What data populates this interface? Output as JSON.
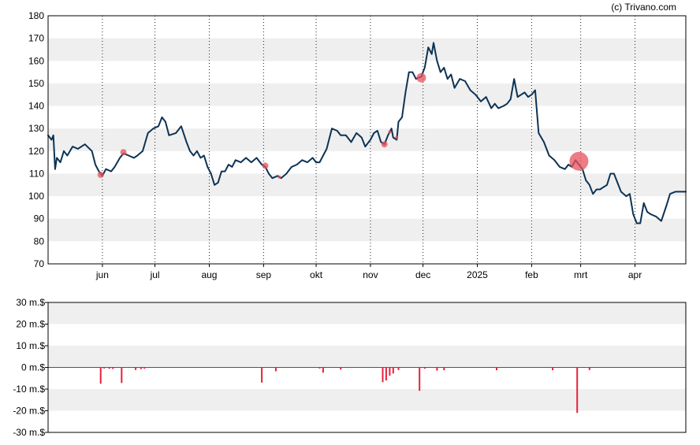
{
  "watermark": "(c) Trivano.com",
  "chart_data": [
    {
      "type": "line",
      "title": "",
      "xlabel": "",
      "ylabel": "",
      "ylim": [
        70,
        180
      ],
      "yticks": [
        "70",
        "80",
        "90",
        "100",
        "110",
        "120",
        "130",
        "140",
        "150",
        "160",
        "170",
        "180"
      ],
      "xlim": [
        "2024-05-01",
        "2025-04-30"
      ],
      "xticks": [
        {
          "date": "2024-06-01",
          "label": "jun"
        },
        {
          "date": "2024-07-01",
          "label": "jul"
        },
        {
          "date": "2024-08-01",
          "label": "aug"
        },
        {
          "date": "2024-09-01",
          "label": "sep"
        },
        {
          "date": "2024-10-01",
          "label": "okt"
        },
        {
          "date": "2024-11-01",
          "label": "nov"
        },
        {
          "date": "2024-12-01",
          "label": "dec"
        },
        {
          "date": "2025-01-01",
          "label": "2025"
        },
        {
          "date": "2025-02-01",
          "label": "feb"
        },
        {
          "date": "2025-03-01",
          "label": "mrt"
        },
        {
          "date": "2025-04-01",
          "label": "apr"
        }
      ],
      "grid": "alternating horizontal bands, dotted vertical lines at month ticks",
      "colors": {
        "line": "#0d3354",
        "marker": "#e8505b",
        "band": "#efefef"
      },
      "series": [
        {
          "values": [
            [
              "2024-05-01",
              127
            ],
            [
              "2024-05-03",
              125
            ],
            [
              "2024-05-04",
              127
            ],
            [
              "2024-05-05",
              112
            ],
            [
              "2024-05-06",
              117
            ],
            [
              "2024-05-08",
              115
            ],
            [
              "2024-05-10",
              120
            ],
            [
              "2024-05-12",
              118
            ],
            [
              "2024-05-15",
              122
            ],
            [
              "2024-05-18",
              121
            ],
            [
              "2024-05-22",
              123
            ],
            [
              "2024-05-26",
              120
            ],
            [
              "2024-05-28",
              114
            ],
            [
              "2024-05-30",
              111
            ],
            [
              "2024-06-01",
              109
            ],
            [
              "2024-06-03",
              112
            ],
            [
              "2024-06-06",
              111
            ],
            [
              "2024-06-08",
              113
            ],
            [
              "2024-06-11",
              117
            ],
            [
              "2024-06-13",
              119
            ],
            [
              "2024-06-16",
              118
            ],
            [
              "2024-06-19",
              117
            ],
            [
              "2024-06-21",
              118
            ],
            [
              "2024-06-24",
              120
            ],
            [
              "2024-06-27",
              128
            ],
            [
              "2024-06-30",
              130
            ],
            [
              "2024-07-03",
              131
            ],
            [
              "2024-07-05",
              135
            ],
            [
              "2024-07-07",
              133
            ],
            [
              "2024-07-09",
              127
            ],
            [
              "2024-07-13",
              128
            ],
            [
              "2024-07-16",
              131
            ],
            [
              "2024-07-19",
              124
            ],
            [
              "2024-07-21",
              120
            ],
            [
              "2024-07-23",
              118
            ],
            [
              "2024-07-25",
              120
            ],
            [
              "2024-07-27",
              117
            ],
            [
              "2024-07-29",
              118
            ],
            [
              "2024-07-31",
              113
            ],
            [
              "2024-08-02",
              110
            ],
            [
              "2024-08-04",
              105
            ],
            [
              "2024-08-06",
              106
            ],
            [
              "2024-08-08",
              111
            ],
            [
              "2024-08-10",
              111
            ],
            [
              "2024-08-12",
              114
            ],
            [
              "2024-08-14",
              113
            ],
            [
              "2024-08-16",
              116
            ],
            [
              "2024-08-19",
              115
            ],
            [
              "2024-08-22",
              117
            ],
            [
              "2024-08-25",
              115
            ],
            [
              "2024-08-28",
              117
            ],
            [
              "2024-08-31",
              114
            ],
            [
              "2024-09-02",
              113
            ],
            [
              "2024-09-04",
              110
            ],
            [
              "2024-09-06",
              108
            ],
            [
              "2024-09-09",
              109
            ],
            [
              "2024-09-11",
              108
            ],
            [
              "2024-09-14",
              110
            ],
            [
              "2024-09-17",
              113
            ],
            [
              "2024-09-20",
              114
            ],
            [
              "2024-09-23",
              116
            ],
            [
              "2024-09-26",
              115
            ],
            [
              "2024-09-29",
              117
            ],
            [
              "2024-10-01",
              115
            ],
            [
              "2024-10-03",
              115
            ],
            [
              "2024-10-05",
              118
            ],
            [
              "2024-10-07",
              121
            ],
            [
              "2024-10-10",
              130
            ],
            [
              "2024-10-13",
              129
            ],
            [
              "2024-10-15",
              127
            ],
            [
              "2024-10-18",
              127
            ],
            [
              "2024-10-21",
              124
            ],
            [
              "2024-10-24",
              128
            ],
            [
              "2024-10-27",
              126
            ],
            [
              "2024-10-29",
              122
            ],
            [
              "2024-11-01",
              125
            ],
            [
              "2024-11-03",
              128
            ],
            [
              "2024-11-05",
              129
            ],
            [
              "2024-11-07",
              124
            ],
            [
              "2024-11-09",
              123
            ],
            [
              "2024-11-11",
              127
            ],
            [
              "2024-11-13",
              130
            ],
            [
              "2024-11-14",
              126
            ],
            [
              "2024-11-16",
              125
            ],
            [
              "2024-11-17",
              133
            ],
            [
              "2024-11-19",
              135
            ],
            [
              "2024-11-21",
              146
            ],
            [
              "2024-11-23",
              155
            ],
            [
              "2024-11-25",
              155
            ],
            [
              "2024-11-27",
              152
            ],
            [
              "2024-11-30",
              153
            ],
            [
              "2024-12-02",
              157
            ],
            [
              "2024-12-04",
              166
            ],
            [
              "2024-12-06",
              163
            ],
            [
              "2024-12-07",
              168
            ],
            [
              "2024-12-09",
              160
            ],
            [
              "2024-12-11",
              155
            ],
            [
              "2024-12-13",
              157
            ],
            [
              "2024-12-15",
              152
            ],
            [
              "2024-12-17",
              154
            ],
            [
              "2024-12-19",
              148
            ],
            [
              "2024-12-22",
              152
            ],
            [
              "2024-12-25",
              151
            ],
            [
              "2024-12-28",
              147
            ],
            [
              "2024-12-31",
              145
            ],
            [
              "2025-01-03",
              142
            ],
            [
              "2025-01-06",
              144
            ],
            [
              "2025-01-09",
              139
            ],
            [
              "2025-01-11",
              141
            ],
            [
              "2025-01-13",
              139
            ],
            [
              "2025-01-16",
              140
            ],
            [
              "2025-01-18",
              141
            ],
            [
              "2025-01-20",
              143
            ],
            [
              "2025-01-22",
              152
            ],
            [
              "2025-01-24",
              144
            ],
            [
              "2025-01-26",
              145
            ],
            [
              "2025-01-28",
              146
            ],
            [
              "2025-01-30",
              144
            ],
            [
              "2025-02-01",
              145
            ],
            [
              "2025-02-03",
              147
            ],
            [
              "2025-02-05",
              128
            ],
            [
              "2025-02-08",
              124
            ],
            [
              "2025-02-11",
              118
            ],
            [
              "2025-02-14",
              116
            ],
            [
              "2025-02-17",
              113
            ],
            [
              "2025-02-20",
              112
            ],
            [
              "2025-02-22",
              114
            ],
            [
              "2025-02-24",
              113
            ],
            [
              "2025-02-26",
              116
            ],
            [
              "2025-02-28",
              114
            ],
            [
              "2025-03-02",
              112
            ],
            [
              "2025-03-04",
              107
            ],
            [
              "2025-03-06",
              105
            ],
            [
              "2025-03-08",
              101
            ],
            [
              "2025-03-10",
              103
            ],
            [
              "2025-03-12",
              103
            ],
            [
              "2025-03-14",
              104
            ],
            [
              "2025-03-16",
              105
            ],
            [
              "2025-03-18",
              110
            ],
            [
              "2025-03-20",
              110
            ],
            [
              "2025-03-22",
              106
            ],
            [
              "2025-03-24",
              102
            ],
            [
              "2025-03-27",
              100
            ],
            [
              "2025-03-29",
              101
            ],
            [
              "2025-03-31",
              92
            ],
            [
              "2025-04-02",
              88
            ],
            [
              "2025-04-04",
              88
            ],
            [
              "2025-04-06",
              97
            ],
            [
              "2025-04-08",
              93
            ],
            [
              "2025-04-10",
              92
            ],
            [
              "2025-04-13",
              91
            ],
            [
              "2025-04-16",
              89
            ],
            [
              "2025-04-19",
              96
            ],
            [
              "2025-04-21",
              101
            ],
            [
              "2025-04-24",
              102
            ],
            [
              "2025-04-27",
              102
            ],
            [
              "2025-04-30",
              102
            ]
          ]
        }
      ],
      "markers": [
        {
          "date": "2024-05-31",
          "value": 109.5,
          "size": "small"
        },
        {
          "date": "2024-06-13",
          "value": 119.5,
          "size": "small"
        },
        {
          "date": "2024-09-02",
          "value": 113.5,
          "size": "small"
        },
        {
          "date": "2024-09-10",
          "value": 108.5,
          "size": "tiny"
        },
        {
          "date": "2024-11-09",
          "value": 123,
          "size": "small"
        },
        {
          "date": "2024-11-12",
          "value": 128.5,
          "size": "tiny"
        },
        {
          "date": "2024-11-16",
          "value": 126,
          "size": "tiny"
        },
        {
          "date": "2024-11-30",
          "value": 152.5,
          "size": "medium"
        },
        {
          "date": "2025-02-28",
          "value": 115.5,
          "size": "large"
        }
      ]
    },
    {
      "type": "bar",
      "title": "",
      "xlabel": "",
      "ylabel": "",
      "ylim": [
        -30,
        30
      ],
      "yticks": [
        "-30 m.$",
        "-20 m.$",
        "-10 m.$",
        "0 m.$",
        "10 m.$",
        "20 m.$",
        "30 m.$"
      ],
      "unit": "m.$",
      "colors": {
        "bar": "#e8203a",
        "band": "#efefef",
        "zero": "#555555"
      },
      "values": [
        [
          "2024-05-31",
          -7.5
        ],
        [
          "2024-06-02",
          -0.5
        ],
        [
          "2024-06-05",
          -0.6
        ],
        [
          "2024-06-07",
          -0.7
        ],
        [
          "2024-06-12",
          -7.2
        ],
        [
          "2024-06-20",
          -1.2
        ],
        [
          "2024-06-23",
          -0.8
        ],
        [
          "2024-06-25",
          -0.6
        ],
        [
          "2024-08-31",
          -7
        ],
        [
          "2024-09-08",
          -1.8
        ],
        [
          "2024-10-03",
          -0.5
        ],
        [
          "2024-10-05",
          -2.4
        ],
        [
          "2024-10-15",
          -1
        ],
        [
          "2024-11-08",
          -6.8
        ],
        [
          "2024-11-10",
          -6
        ],
        [
          "2024-11-12",
          -3.8
        ],
        [
          "2024-11-14",
          -2.8
        ],
        [
          "2024-11-17",
          -1.2
        ],
        [
          "2024-11-29",
          -10.8
        ],
        [
          "2024-12-02",
          -0.6
        ],
        [
          "2024-12-09",
          -1.5
        ],
        [
          "2024-12-13",
          -1.3
        ],
        [
          "2025-01-12",
          -1.3
        ],
        [
          "2025-02-13",
          -1.3
        ],
        [
          "2025-02-27",
          -21
        ],
        [
          "2025-03-06",
          -1.2
        ]
      ]
    }
  ]
}
